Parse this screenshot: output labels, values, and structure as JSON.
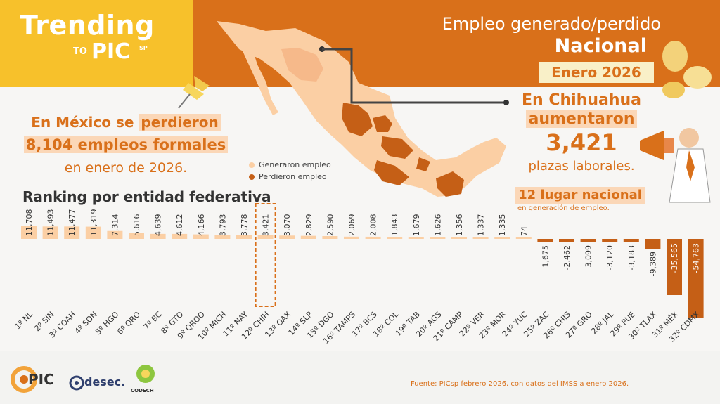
{
  "branding": {
    "trending": "Trending",
    "to": "TO",
    "pic": "PIC",
    "sp": "SP"
  },
  "header": {
    "title": "Empleo generado/perdido",
    "subtitle": "Nacional",
    "period": "Enero 2026"
  },
  "national_summary": {
    "line1_prefix": "En México se ",
    "line1_highlight": "perdieron",
    "line2": "8,104 empleos formales",
    "line3": "en enero de 2026."
  },
  "map_legend": {
    "gained": "Generaron empleo",
    "lost": "Perdieron empleo"
  },
  "state_callout": {
    "line1": "En Chihuahua",
    "line2": "aumentaron",
    "value": "3,421",
    "line4": "plazas laborales.",
    "rank": "12 lugar nacional",
    "rank_sub": "en generación de empleo."
  },
  "ranking_title": "Ranking por entidad federativa",
  "footer": {
    "source": "Fuente: PICsp febrero 2026, con datos del IMSS a enero 2026.",
    "logo_pic": "PIC",
    "logo_desec": "desec.",
    "logo_codech": "CODECH"
  },
  "colors": {
    "accent": "#d9701a",
    "yellow": "#f7c12b",
    "gain": "#fbcfa4",
    "loss": "#c55f16"
  },
  "chart_data": {
    "type": "bar",
    "title": "Ranking por entidad federativa",
    "xlabel": "",
    "ylabel": "",
    "categories": [
      "1º NL",
      "2º SIN",
      "3º COAH",
      "4º SON",
      "5º HGO",
      "6º QRO",
      "7º BC",
      "8º GTO",
      "9º QROO",
      "10º MICH",
      "11º NAY",
      "12º CHIH",
      "13º OAX",
      "14º SLP",
      "15º DGO",
      "16º TAMPS",
      "17º BCS",
      "18º COL",
      "19º TAB",
      "20º AGS",
      "21º CAMP",
      "22º VER",
      "23º MOR",
      "24º YUC",
      "25º ZAC",
      "26º CHIS",
      "27º GRO",
      "28º JAL",
      "29º PUE",
      "30º TLAX",
      "31º MÉX",
      "32º CDMX"
    ],
    "values": [
      11708,
      11493,
      11477,
      11319,
      7314,
      5616,
      4639,
      4612,
      4166,
      3793,
      3778,
      3421,
      3070,
      2829,
      2590,
      2069,
      2008,
      1843,
      1679,
      1626,
      1356,
      1337,
      1335,
      74,
      -1675,
      -2462,
      -3099,
      -3120,
      -3183,
      -9389,
      -35565,
      -54763
    ],
    "labels": [
      "11,708",
      "11,493",
      "11,477",
      "11,319",
      "7,314",
      "5,616",
      "4,639",
      "4,612",
      "4,166",
      "3,793",
      "3,778",
      "3,421",
      "3,070",
      "2,829",
      "2,590",
      "2,069",
      "2,008",
      "1,843",
      "1,679",
      "1,626",
      "1,356",
      "1,337",
      "1,335",
      "74",
      "-1,675",
      "-2,462",
      "-3,099",
      "-3,120",
      "-3,183",
      "-9,389",
      "-35,565",
      "-54,763"
    ],
    "highlight": "12º CHIH",
    "grid": false,
    "legend": "none"
  }
}
